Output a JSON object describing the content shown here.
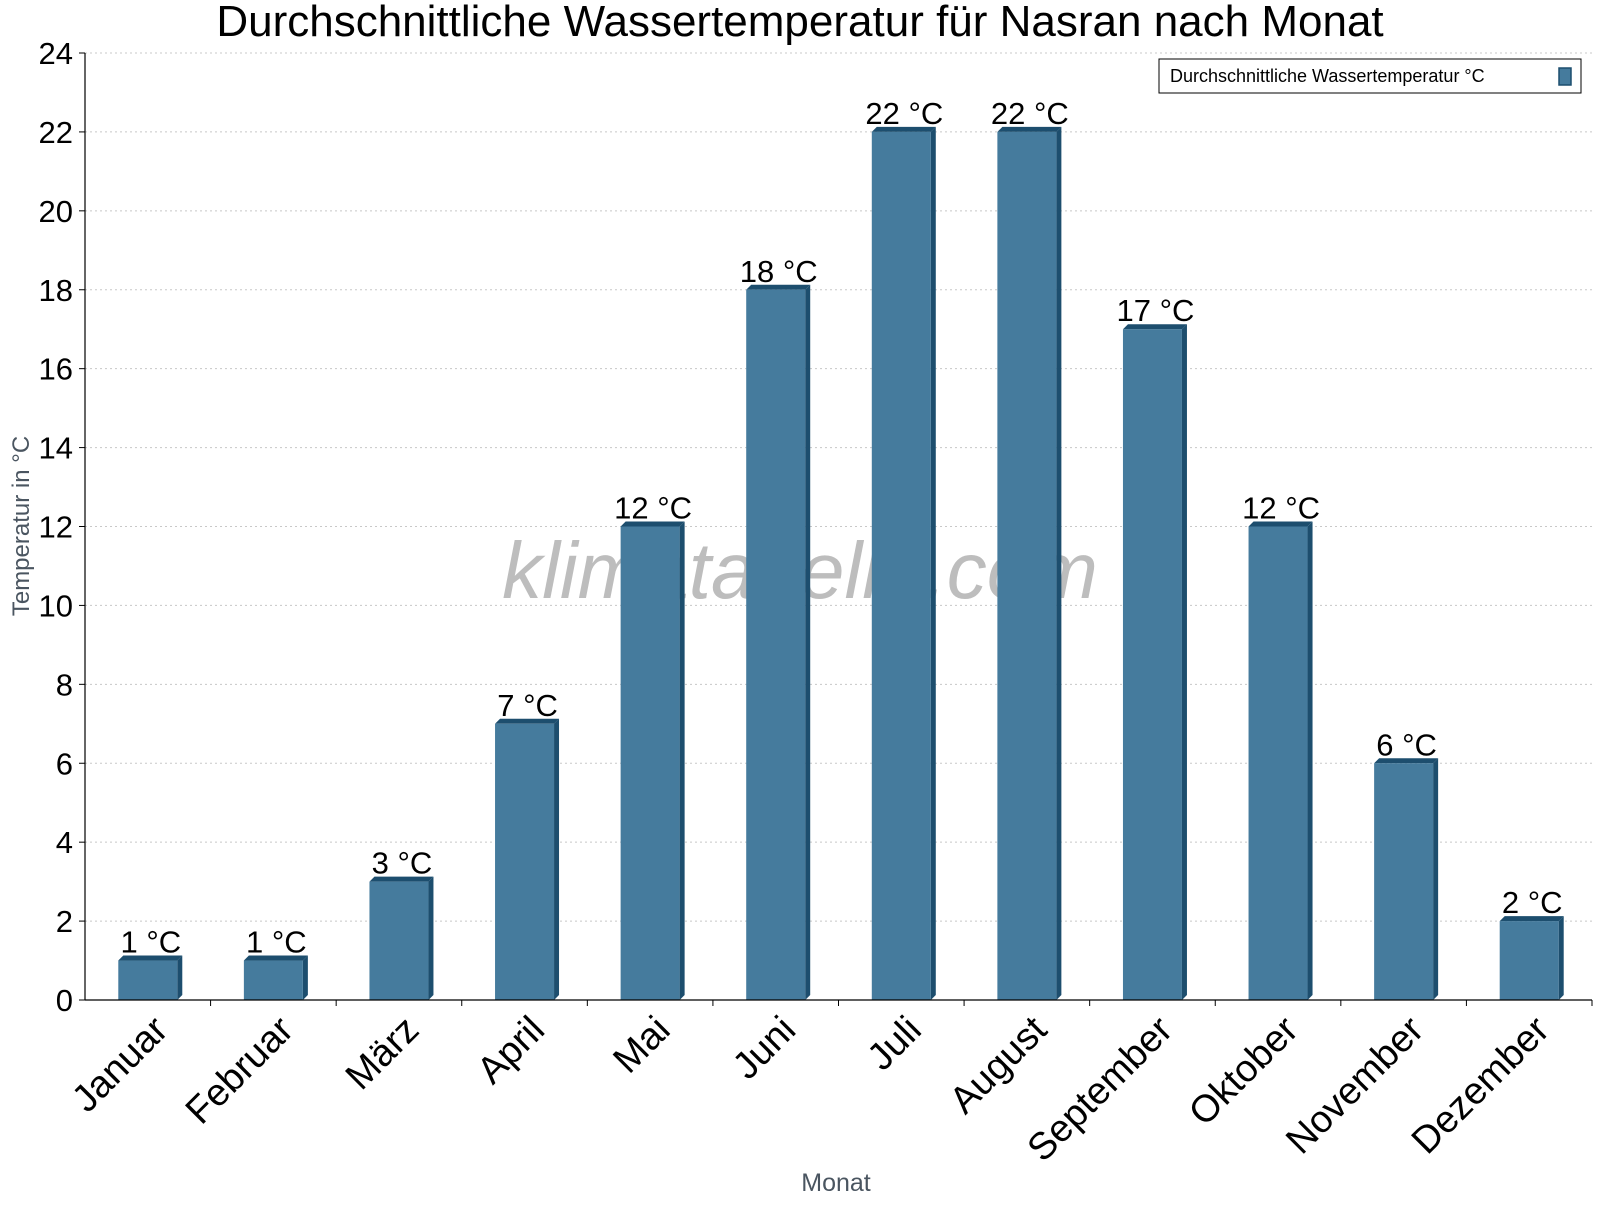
{
  "colors": {
    "bar_fill": "#457b9d",
    "bar_side": "#1d4e6e",
    "grid": "#c8c8c8",
    "axis": "#000000",
    "watermark": "#9a9a9a",
    "axis_title": "#4a5560"
  },
  "watermark": "klimatabelle.com",
  "chart_data": {
    "type": "bar",
    "title": "Durchschnittliche Wassertemperatur für Nasran nach Monat",
    "xlabel": "Monat",
    "ylabel": "Temperatur in °C",
    "categories": [
      "Januar",
      "Februar",
      "März",
      "April",
      "Mai",
      "Juni",
      "Juli",
      "August",
      "September",
      "Oktober",
      "November",
      "Dezember"
    ],
    "series": [
      {
        "name": "Durchschnittliche Wassertemperatur °C",
        "values": [
          1,
          1,
          3,
          7,
          12,
          18,
          22,
          22,
          17,
          12,
          6,
          2
        ],
        "data_labels": [
          "1 °C",
          "1 °C",
          "3 °C",
          "7 °C",
          "12 °C",
          "18 °C",
          "22 °C",
          "22 °C",
          "17 °C",
          "12 °C",
          "6 °C",
          "2 °C"
        ]
      }
    ],
    "ylim": [
      0,
      24
    ],
    "yticks": [
      "0",
      "2",
      "4",
      "6",
      "8",
      "10",
      "12",
      "14",
      "16",
      "18",
      "20",
      "22",
      "24"
    ],
    "grid": true,
    "legend_position": "top-right"
  }
}
